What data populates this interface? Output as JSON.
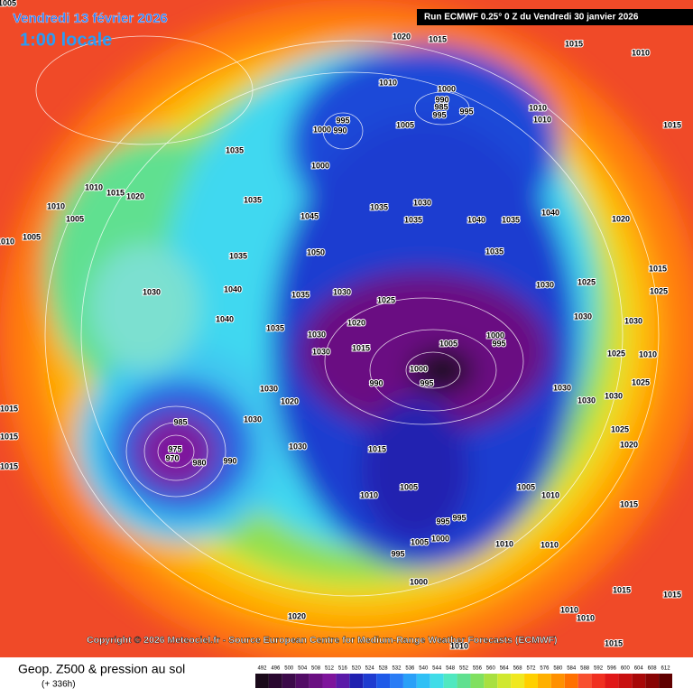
{
  "header": {
    "date": "Vendredi 13 février 2026",
    "time": "1:00 locale",
    "run": "Run ECMWF 0.25° 0 Z du Vendredi 30 janvier 2026"
  },
  "copyright": "Copyright © 2026 Meteociel.fr - Source European Centre for Medium-Range Weather Forecasts (ECMWF)",
  "footer": {
    "title": "Geop. Z500 & pression au sol",
    "lead": "(+ 336h)"
  },
  "legend": {
    "ticks": [
      492,
      496,
      500,
      504,
      508,
      512,
      516,
      520,
      524,
      528,
      532,
      536,
      540,
      544,
      548,
      552,
      556,
      560,
      564,
      568,
      572,
      576,
      580,
      584,
      588,
      592,
      596,
      600,
      604,
      608,
      612
    ],
    "colors": [
      "#1a0a1a",
      "#2a0830",
      "#3c0a4a",
      "#520c66",
      "#6a0f82",
      "#7e149c",
      "#5a1aa8",
      "#2020b0",
      "#1f3cd0",
      "#1f5ae8",
      "#2a7cf5",
      "#2aa0f8",
      "#30c0f5",
      "#40dce8",
      "#50e8c0",
      "#60e090",
      "#80e060",
      "#a8e040",
      "#d0e830",
      "#f0e820",
      "#ffd000",
      "#ffb000",
      "#ff9000",
      "#ff7000",
      "#f85030",
      "#f03020",
      "#e01818",
      "#c81010",
      "#a80808",
      "#880404",
      "#600000"
    ]
  },
  "pressure_labels": [
    1005,
    1020,
    1015,
    1015,
    1010,
    1010,
    1000,
    990,
    985,
    995,
    995,
    1010,
    1010,
    995,
    1000,
    990,
    1005,
    1015,
    1035,
    1000,
    1010,
    1015,
    1020,
    1010,
    1005,
    1005,
    1010,
    1035,
    1045,
    1035,
    1030,
    1035,
    1040,
    1035,
    1040,
    1020,
    1035,
    1035,
    1050,
    1030,
    1040,
    1035,
    1030,
    1025,
    1015,
    1025,
    1030,
    1025,
    1030,
    1030,
    1040,
    1035,
    1030,
    1020,
    1015,
    1005,
    1000,
    995,
    1030,
    1000,
    995,
    990,
    1030,
    1030,
    1020,
    1030,
    1030,
    1025,
    1010,
    1025,
    1015,
    1030,
    1030,
    1015,
    985,
    975,
    970,
    980,
    990,
    1015,
    1015,
    1025,
    1020,
    1005,
    1010,
    1005,
    1010,
    1015,
    1000,
    995,
    995,
    1005,
    1010,
    1010,
    995,
    1000,
    1015,
    1010,
    1020,
    1010,
    1015,
    1015,
    1010
  ]
}
